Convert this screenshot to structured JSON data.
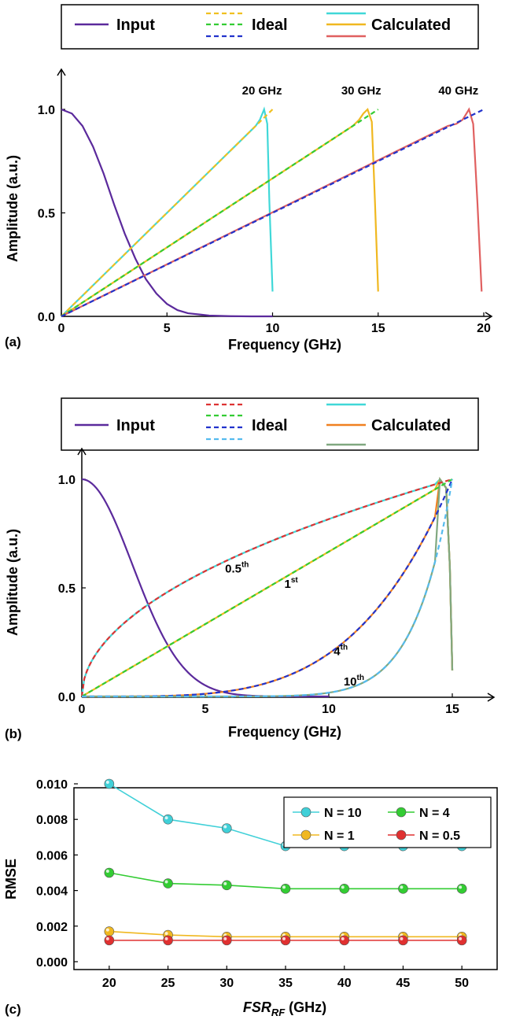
{
  "chart_data": [
    {
      "panel": "(a)",
      "type": "line",
      "xlabel": "Frequency (GHz)",
      "ylabel": "Amplitude (a.u.)",
      "xlim": [
        0,
        20
      ],
      "ylim": [
        0,
        1.0
      ],
      "xticks": [
        "0",
        "5",
        "10",
        "15",
        "20"
      ],
      "yticks": [
        "0.0",
        "0.5",
        "1.0"
      ],
      "legend": {
        "placement": "top",
        "labels": {
          "input": "Input",
          "ideal": "Ideal",
          "calculated": "Calculated"
        }
      },
      "annotations": [
        {
          "text": "20 GHz",
          "x": 9.5
        },
        {
          "text": "30 GHz",
          "x": 14.2
        },
        {
          "text": "40 GHz",
          "x": 18.8
        }
      ],
      "series": [
        {
          "name": "Input",
          "color": "#5b2a9c",
          "dash": "solid",
          "x": [
            0,
            0.5,
            1,
            1.5,
            2,
            2.5,
            3,
            3.5,
            4,
            4.5,
            5,
            5.5,
            6,
            7,
            8,
            9,
            10
          ],
          "y": [
            1.0,
            0.98,
            0.92,
            0.82,
            0.69,
            0.54,
            0.4,
            0.28,
            0.18,
            0.11,
            0.06,
            0.03,
            0.015,
            0.004,
            0.001,
            0.0,
            0.0
          ]
        },
        {
          "name": "",
          "color": "#f0c020",
          "dash": "dashed",
          "x": [
            0,
            10
          ],
          "y": [
            0,
            1.0
          ]
        },
        {
          "name": "",
          "color": "#33cc33",
          "dash": "dashed",
          "x": [
            0,
            15
          ],
          "y": [
            0,
            1.0
          ]
        },
        {
          "name": "",
          "color": "#2233cc",
          "dash": "dashed",
          "x": [
            0,
            20
          ],
          "y": [
            0,
            1.0
          ]
        },
        {
          "name": "",
          "color": "#40d8d8",
          "dash": "solid",
          "x": [
            0,
            9.0,
            9.2,
            9.4,
            9.6,
            9.75,
            9.85,
            10.0
          ],
          "y": [
            0,
            0.9,
            0.92,
            0.95,
            1.0,
            0.93,
            0.55,
            0.12
          ]
        },
        {
          "name": "",
          "color": "#f0b820",
          "dash": "solid",
          "x": [
            0,
            13.8,
            14.1,
            14.3,
            14.5,
            14.7,
            14.85,
            15.0
          ],
          "y": [
            0,
            0.92,
            0.95,
            0.98,
            1.0,
            0.94,
            0.55,
            0.12
          ]
        },
        {
          "name": "",
          "color": "#e06060",
          "dash": "solid",
          "x": [
            0,
            18.3,
            18.7,
            19.0,
            19.3,
            19.5,
            19.7,
            19.9
          ],
          "y": [
            0,
            0.92,
            0.93,
            0.95,
            1.0,
            0.93,
            0.55,
            0.12
          ]
        }
      ]
    },
    {
      "panel": "(b)",
      "type": "line",
      "xlabel": "Frequency (GHz)",
      "ylabel": "Amplitude (a.u.)",
      "xlim": [
        0,
        15
      ],
      "ylim": [
        0,
        1.0
      ],
      "xticks": [
        "0",
        "5",
        "10",
        "15"
      ],
      "yticks": [
        "0.0",
        "0.5",
        "1.0"
      ],
      "legend": {
        "placement": "top",
        "labels": {
          "input": "Input",
          "ideal": "Ideal",
          "calculated": "Calculated"
        }
      },
      "annotations": [
        {
          "base": "0.5",
          "sup": "th",
          "x": 5.8,
          "y": 0.57
        },
        {
          "base": "1",
          "sup": "st",
          "x": 8.2,
          "y": 0.5
        },
        {
          "base": "4",
          "sup": "th",
          "x": 10.2,
          "y": 0.19
        },
        {
          "base": "10",
          "sup": "th",
          "x": 10.6,
          "y": 0.05
        }
      ],
      "orders": [
        0.5,
        1,
        4,
        10
      ],
      "ideal_colors": [
        "#dd3333",
        "#33cc33",
        "#2233cc",
        "#55bbee"
      ],
      "calculated_colors": [
        "#40d8d8",
        "#f0b820",
        "#f08020",
        "#80a880"
      ],
      "input_color": "#5b2a9c"
    },
    {
      "panel": "(c)",
      "type": "line",
      "xlabel": "FSR",
      "xlabel_sub": "RF",
      "xlabel_unit": " (GHz)",
      "ylabel": "RMSE",
      "xlim": [
        17,
        53
      ],
      "ylim": [
        -0.0004,
        0.011
      ],
      "x": [
        20,
        25,
        30,
        35,
        40,
        45,
        50
      ],
      "xticks": [
        "20",
        "25",
        "30",
        "35",
        "40",
        "45",
        "50"
      ],
      "yticks": [
        "0.000",
        "0.002",
        "0.004",
        "0.006",
        "0.008",
        "0.010"
      ],
      "legend": {
        "placement": "top-right"
      },
      "series": [
        {
          "name": "N = 10",
          "color": "#40d0d8",
          "values": [
            0.01,
            0.008,
            0.0075,
            0.0065,
            0.0065,
            0.0065,
            0.0065
          ]
        },
        {
          "name": "N = 4",
          "color": "#33cc33",
          "values": [
            0.005,
            0.0044,
            0.0043,
            0.0041,
            0.0041,
            0.0041,
            0.0041
          ]
        },
        {
          "name": "N = 1",
          "color": "#f0b820",
          "values": [
            0.0017,
            0.0015,
            0.0014,
            0.0014,
            0.0014,
            0.0014,
            0.0014
          ]
        },
        {
          "name": "N = 0.5",
          "color": "#e03030",
          "values": [
            0.0012,
            0.0012,
            0.0012,
            0.0012,
            0.0012,
            0.0012,
            0.0012
          ]
        }
      ]
    }
  ]
}
